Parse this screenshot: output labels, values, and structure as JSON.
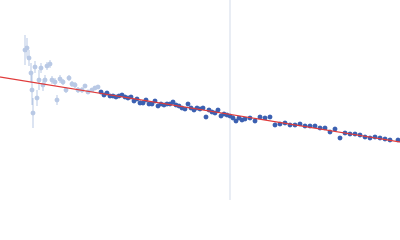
{
  "chart_data": {
    "type": "scatter",
    "xlim": [
      0,
      400
    ],
    "ylim": [
      0,
      200
    ],
    "vline": 230,
    "vline_color": "#d3dbea",
    "series": [
      {
        "color": "#b9c9e5",
        "mode": "points",
        "x": [
          25,
          27,
          29,
          31,
          32,
          33,
          35,
          37,
          39,
          41,
          43,
          45,
          47,
          50,
          52,
          55,
          57,
          60,
          63,
          66,
          69,
          72,
          75,
          78,
          82,
          85,
          88,
          92,
          95,
          98
        ],
        "values": [
          150,
          152,
          142,
          127,
          110,
          87,
          133,
          102,
          120,
          132,
          115,
          120,
          134,
          136,
          120,
          118,
          100,
          121,
          118,
          110,
          122,
          116,
          115,
          110,
          110,
          114,
          108,
          110,
          112,
          113
        ],
        "errors": [
          15,
          10,
          8,
          10,
          15,
          15,
          6,
          8,
          10,
          5,
          6,
          5,
          4,
          4,
          4,
          4,
          5,
          4,
          3,
          3,
          3,
          3,
          3,
          3,
          3,
          2,
          2,
          2,
          2,
          2
        ]
      },
      {
        "color": "#3b60b1",
        "mode": "points",
        "x": [
          101,
          104,
          107,
          110,
          113,
          116,
          119,
          122,
          125,
          128,
          131,
          134,
          137,
          140,
          143,
          146,
          149,
          152,
          155,
          158,
          161,
          164,
          167,
          170,
          173,
          176,
          179,
          182,
          185,
          188,
          191,
          194,
          197,
          200,
          203,
          206,
          209,
          212,
          215,
          218,
          221,
          224,
          227,
          230,
          233,
          236,
          239,
          242,
          245,
          250,
          255,
          260,
          265,
          270,
          275,
          280,
          285,
          290,
          295,
          300,
          305,
          310,
          315,
          320,
          325,
          330,
          335,
          340,
          345,
          350,
          355,
          360,
          365,
          370,
          375,
          380,
          385,
          390,
          398
        ],
        "values": [
          108,
          105,
          107,
          104,
          104,
          103,
          104,
          105,
          103,
          102,
          103,
          99,
          101,
          97,
          97,
          100,
          96,
          96,
          99,
          94,
          96,
          95,
          96,
          96,
          98,
          95,
          94,
          92,
          91,
          96,
          92,
          90,
          92,
          91,
          92,
          83,
          90,
          88,
          87,
          90,
          84,
          86,
          85,
          84,
          82,
          79,
          82,
          80,
          81,
          82,
          79,
          83,
          82,
          83,
          75,
          76,
          77,
          75,
          75,
          76,
          74,
          74,
          74,
          72,
          72,
          68,
          71,
          62,
          67,
          66,
          66,
          65,
          63,
          62,
          63,
          62,
          61,
          60,
          60
        ]
      },
      {
        "color": "#e03a3a",
        "mode": "line",
        "x": [
          0,
          400
        ],
        "values": [
          123,
          58
        ]
      }
    ]
  }
}
